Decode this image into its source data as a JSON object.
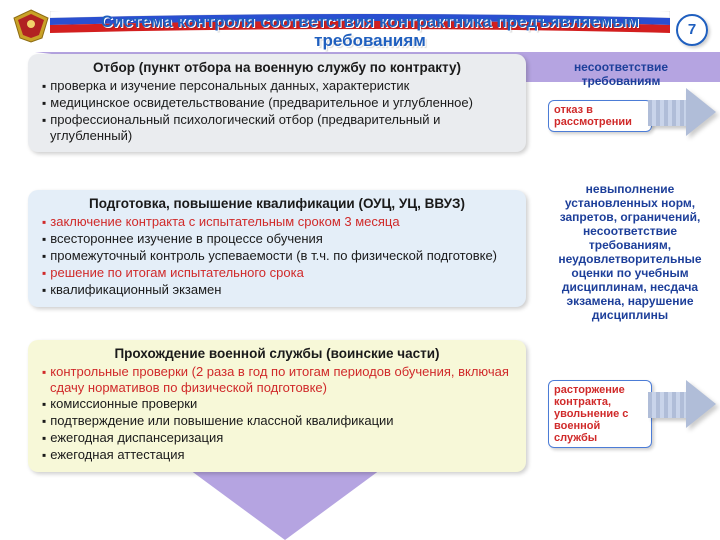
{
  "page_number": "7",
  "title": "Система контроля соответствия контрактника предъявляемым требованиям",
  "colors": {
    "title_color": "#1f5fbf",
    "accent_red": "#d02a2a",
    "side_blue": "#1d3f9a",
    "triangle_fill": "rgba(120,90,200,0.55)",
    "block1_bg": "#eaecef",
    "block2_bg": "#e4eef8",
    "block3_bg": "#f7f8d8",
    "arrow_fill": "#b0bdd8",
    "frame_border": "#4c7cd6"
  },
  "blocks": [
    {
      "title": "Отбор (пункт отбора на военную службу по контракту)",
      "items": [
        {
          "text": "проверка и изучение персональных данных, характеристик",
          "red": false
        },
        {
          "text": "медицинское освидетельствование (предварительное и углубленное)",
          "red": false
        },
        {
          "text": "профессиональный психологический отбор (предварительный и углубленный)",
          "red": false
        }
      ]
    },
    {
      "title": "Подготовка, повышение квалификации (ОУЦ, УЦ, ВВУЗ)",
      "items": [
        {
          "text": "заключение контракта с испытательным сроком 3 месяца",
          "red": true
        },
        {
          "text": "всестороннее изучение в процессе обучения",
          "red": false
        },
        {
          "text": "промежуточный контроль успеваемости (в т.ч. по физической подготовке)",
          "red": false
        },
        {
          "text": "решение по итогам испытательного срока",
          "red": true
        },
        {
          "text": "квалификационный экзамен",
          "red": false
        }
      ]
    },
    {
      "title": "Прохождение военной службы (воинские части)",
      "items": [
        {
          "text": "контрольные проверки (2 раза в год по итогам периодов обучения, включая сдачу нормативов по физической подготовке)",
          "red": true
        },
        {
          "text": "комиссионные проверки",
          "red": false
        },
        {
          "text": "подтверждение или повышение классной квалификации",
          "red": false
        },
        {
          "text": "ежегодная диспансеризация",
          "red": false
        },
        {
          "text": "ежегодная аттестация",
          "red": false
        }
      ]
    }
  ],
  "side": {
    "label1": "несоответствие требованиям",
    "frame1": "отказ в рассмотрении",
    "label2": "невыполнение установленных норм, запретов, ограничений, несоответствие требованиям, неудовлетворительные оценки по учебным дисциплинам, несдача экзамена, нарушение дисциплины",
    "frame2": "расторжение контракта, увольнение с военной службы"
  }
}
